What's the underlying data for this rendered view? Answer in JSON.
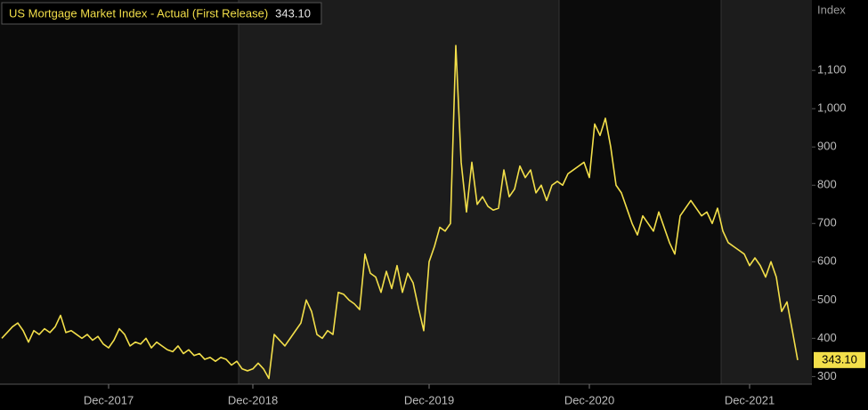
{
  "chart_data": {
    "type": "line",
    "y_label": "Index",
    "categories": [
      null,
      null,
      null,
      null,
      null,
      null,
      null,
      null,
      null,
      null,
      null,
      null,
      null,
      null,
      null,
      null,
      null,
      null,
      null,
      null,
      "Dec-2017",
      null,
      null,
      null,
      null,
      null,
      null,
      null,
      null,
      null,
      null,
      null,
      null,
      null,
      null,
      null,
      null,
      null,
      null,
      null,
      null,
      null,
      null,
      null,
      null,
      null,
      null,
      "Dec-2018",
      null,
      null,
      null,
      null,
      null,
      null,
      null,
      null,
      null,
      null,
      null,
      null,
      null,
      null,
      null,
      null,
      null,
      null,
      null,
      null,
      null,
      null,
      null,
      null,
      null,
      null,
      null,
      null,
      null,
      null,
      null,
      null,
      "Dec-2019",
      null,
      null,
      null,
      null,
      null,
      null,
      null,
      null,
      null,
      null,
      null,
      null,
      null,
      null,
      null,
      null,
      null,
      null,
      null,
      null,
      null,
      null,
      null,
      null,
      null,
      null,
      null,
      null,
      null,
      "Dec-2020",
      null,
      null,
      null,
      null,
      null,
      null,
      null,
      null,
      null,
      null,
      null,
      null,
      null,
      null,
      null,
      null,
      null,
      null,
      null,
      null,
      null,
      null,
      null,
      null,
      null,
      null,
      null,
      null,
      null,
      "Dec-2021",
      null,
      null,
      null,
      null,
      null,
      null,
      null,
      null,
      null
    ],
    "series": [
      {
        "name": "US Mortgage Market Index - Actual (First Release)",
        "color": "#f3df4a",
        "values": [
          400,
          415,
          430,
          440,
          420,
          390,
          420,
          410,
          425,
          415,
          430,
          460,
          415,
          420,
          410,
          400,
          410,
          395,
          405,
          385,
          375,
          395,
          425,
          410,
          380,
          390,
          385,
          400,
          375,
          390,
          380,
          370,
          365,
          380,
          360,
          370,
          355,
          360,
          345,
          350,
          340,
          350,
          345,
          330,
          340,
          320,
          315,
          320,
          335,
          320,
          295,
          410,
          395,
          380,
          400,
          420,
          440,
          500,
          470,
          410,
          400,
          420,
          410,
          520,
          515,
          500,
          490,
          475,
          620,
          570,
          560,
          520,
          575,
          530,
          590,
          520,
          570,
          545,
          480,
          420,
          600,
          640,
          690,
          680,
          700,
          1165,
          860,
          730,
          860,
          750,
          770,
          745,
          735,
          740,
          840,
          770,
          790,
          850,
          820,
          840,
          780,
          800,
          760,
          800,
          810,
          800,
          830,
          840,
          850,
          860,
          820,
          960,
          930,
          975,
          900,
          800,
          780,
          740,
          700,
          670,
          720,
          700,
          680,
          730,
          690,
          650,
          620,
          720,
          740,
          760,
          740,
          720,
          730,
          700,
          740,
          680,
          650,
          640,
          630,
          620,
          590,
          610,
          590,
          560,
          600,
          560,
          470,
          495,
          420,
          343.1
        ],
        "value_labels": [
          null,
          null,
          null,
          null,
          null,
          null,
          null,
          null,
          null,
          null,
          null,
          null,
          null,
          null,
          null,
          null,
          null,
          null,
          null,
          null,
          null,
          null,
          null,
          null,
          null,
          null,
          null,
          null,
          null,
          null,
          null,
          null,
          null,
          null,
          null,
          null,
          null,
          null,
          null,
          null,
          null,
          null,
          null,
          null,
          null,
          null,
          null,
          null,
          null,
          null,
          null,
          null,
          null,
          null,
          null,
          null,
          null,
          null,
          null,
          null,
          null,
          null,
          null,
          null,
          null,
          null,
          null,
          null,
          null,
          null,
          null,
          null,
          null,
          null,
          null,
          null,
          null,
          null,
          null,
          null,
          null,
          null,
          null,
          null,
          null,
          null,
          null,
          null,
          null,
          null,
          null,
          null,
          null,
          null,
          null,
          null,
          null,
          null,
          null,
          null,
          null,
          null,
          null,
          null,
          null,
          null,
          null,
          null,
          null,
          null,
          null,
          null,
          null,
          null,
          null,
          null,
          null,
          null,
          null,
          null,
          null,
          null,
          null,
          null,
          null,
          null,
          null,
          null,
          null,
          null,
          null,
          null,
          null,
          null,
          null,
          null,
          null,
          null,
          null,
          null,
          null,
          null,
          null,
          null,
          null,
          null,
          null,
          null,
          null,
          "343.10"
        ]
      }
    ],
    "ylim": [
      280,
      1284
    ],
    "yticks": [
      300,
      400,
      500,
      600,
      700,
      800,
      900,
      {
        "value": 1000,
        "label": "1,000"
      },
      {
        "value": 1100,
        "label": "1,100"
      }
    ],
    "grid": false
  }
}
